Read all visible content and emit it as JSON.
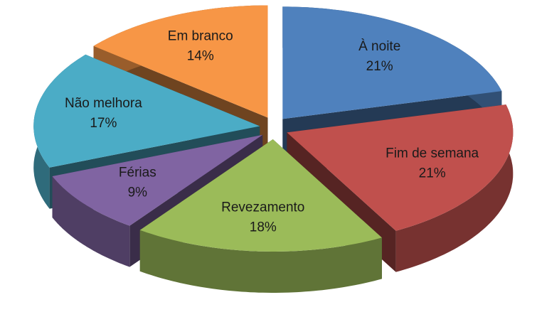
{
  "chart_data": {
    "type": "pie3d",
    "categories": [
      "À noite",
      "Fim de semana",
      "Revezamento",
      "Férias",
      "Não melhora",
      "Em branco"
    ],
    "values": [
      21,
      21,
      18,
      9,
      17,
      14
    ],
    "value_labels": [
      "21%",
      "21%",
      "18%",
      "9%",
      "17%",
      "14%"
    ],
    "colors": [
      "#4f81bd",
      "#c0504d",
      "#9bbb59",
      "#8064a2",
      "#4bacc6",
      "#f79646"
    ]
  }
}
